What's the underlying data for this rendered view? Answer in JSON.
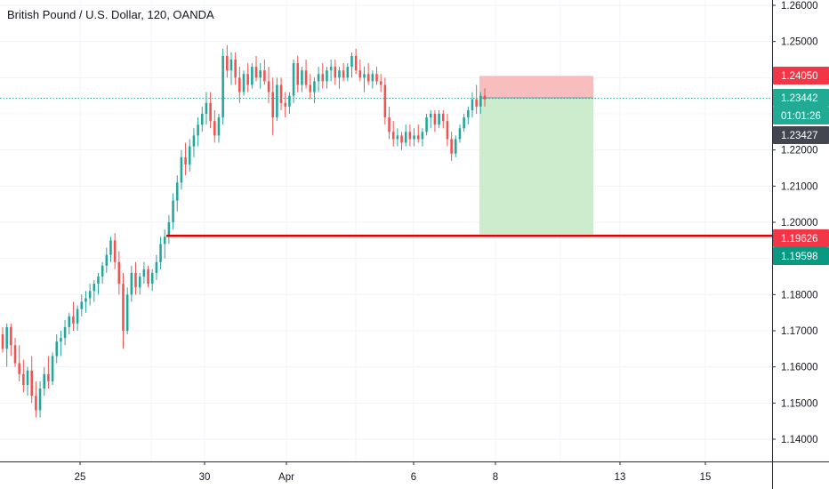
{
  "chart_data": {
    "type": "candlestick",
    "title": "British Pound / U.S. Dollar, 120, OANDA",
    "y_axis": {
      "ticks": [
        "1.26000",
        "1.25000",
        "1.24000",
        "1.23000",
        "1.22000",
        "1.21000",
        "1.20000",
        "1.19000",
        "1.18000",
        "1.17000",
        "1.16000",
        "1.15000",
        "1.14000"
      ],
      "ylim": [
        1.1325,
        1.2655
      ]
    },
    "x_axis": {
      "ticks": [
        "25",
        "30",
        "Apr",
        "6",
        "8",
        "13",
        "15"
      ]
    },
    "candles": [
      [
        1.169,
        1.171,
        1.164,
        1.165
      ],
      [
        1.165,
        1.172,
        1.16,
        1.171
      ],
      [
        1.171,
        1.172,
        1.163,
        1.166
      ],
      [
        1.166,
        1.168,
        1.16,
        1.161
      ],
      [
        1.161,
        1.166,
        1.156,
        1.158
      ],
      [
        1.158,
        1.162,
        1.153,
        1.155
      ],
      [
        1.155,
        1.16,
        1.152,
        1.159
      ],
      [
        1.159,
        1.163,
        1.15,
        1.152
      ],
      [
        1.152,
        1.156,
        1.146,
        1.148
      ],
      [
        1.148,
        1.156,
        1.146,
        1.154
      ],
      [
        1.154,
        1.16,
        1.152,
        1.158
      ],
      [
        1.158,
        1.163,
        1.154,
        1.156
      ],
      [
        1.156,
        1.164,
        1.155,
        1.163
      ],
      [
        1.163,
        1.169,
        1.161,
        1.167
      ],
      [
        1.167,
        1.17,
        1.163,
        1.168
      ],
      [
        1.168,
        1.173,
        1.166,
        1.171
      ],
      [
        1.171,
        1.175,
        1.169,
        1.174
      ],
      [
        1.174,
        1.178,
        1.17,
        1.172
      ],
      [
        1.172,
        1.177,
        1.17,
        1.176
      ],
      [
        1.176,
        1.18,
        1.174,
        1.178
      ],
      [
        1.178,
        1.181,
        1.175,
        1.179
      ],
      [
        1.179,
        1.183,
        1.177,
        1.181
      ],
      [
        1.181,
        1.184,
        1.178,
        1.183
      ],
      [
        1.183,
        1.186,
        1.18,
        1.185
      ],
      [
        1.185,
        1.189,
        1.183,
        1.188
      ],
      [
        1.188,
        1.193,
        1.186,
        1.191
      ],
      [
        1.191,
        1.196,
        1.189,
        1.195
      ],
      [
        1.195,
        1.197,
        1.187,
        1.189
      ],
      [
        1.189,
        1.192,
        1.18,
        1.183
      ],
      [
        1.183,
        1.186,
        1.165,
        1.17
      ],
      [
        1.17,
        1.182,
        1.169,
        1.18
      ],
      [
        1.18,
        1.188,
        1.178,
        1.186
      ],
      [
        1.186,
        1.189,
        1.18,
        1.182
      ],
      [
        1.182,
        1.186,
        1.18,
        1.185
      ],
      [
        1.185,
        1.189,
        1.183,
        1.187
      ],
      [
        1.187,
        1.188,
        1.182,
        1.183
      ],
      [
        1.183,
        1.187,
        1.181,
        1.186
      ],
      [
        1.186,
        1.191,
        1.184,
        1.189
      ],
      [
        1.189,
        1.196,
        1.187,
        1.194
      ],
      [
        1.194,
        1.198,
        1.19,
        1.196
      ],
      [
        1.196,
        1.202,
        1.194,
        1.2
      ],
      [
        1.2,
        1.208,
        1.198,
        1.206
      ],
      [
        1.206,
        1.213,
        1.203,
        1.211
      ],
      [
        1.211,
        1.22,
        1.209,
        1.218
      ],
      [
        1.218,
        1.222,
        1.213,
        1.216
      ],
      [
        1.216,
        1.223,
        1.214,
        1.221
      ],
      [
        1.221,
        1.226,
        1.218,
        1.224
      ],
      [
        1.224,
        1.229,
        1.221,
        1.227
      ],
      [
        1.227,
        1.232,
        1.225,
        1.23
      ],
      [
        1.23,
        1.236,
        1.227,
        1.233
      ],
      [
        1.233,
        1.236,
        1.226,
        1.228
      ],
      [
        1.228,
        1.231,
        1.222,
        1.224
      ],
      [
        1.224,
        1.23,
        1.222,
        1.229
      ],
      [
        1.229,
        1.248,
        1.227,
        1.246
      ],
      [
        1.246,
        1.249,
        1.24,
        1.242
      ],
      [
        1.242,
        1.247,
        1.238,
        1.245
      ],
      [
        1.245,
        1.247,
        1.238,
        1.24
      ],
      [
        1.24,
        1.243,
        1.233,
        1.236
      ],
      [
        1.236,
        1.242,
        1.235,
        1.241
      ],
      [
        1.241,
        1.244,
        1.236,
        1.238
      ],
      [
        1.238,
        1.244,
        1.237,
        1.243
      ],
      [
        1.243,
        1.246,
        1.239,
        1.24
      ],
      [
        1.24,
        1.244,
        1.237,
        1.242
      ],
      [
        1.242,
        1.245,
        1.238,
        1.239
      ],
      [
        1.239,
        1.243,
        1.233,
        1.236
      ],
      [
        1.236,
        1.24,
        1.224,
        1.229
      ],
      [
        1.229,
        1.24,
        1.228,
        1.238
      ],
      [
        1.238,
        1.24,
        1.231,
        1.233
      ],
      [
        1.233,
        1.236,
        1.229,
        1.232
      ],
      [
        1.232,
        1.236,
        1.23,
        1.235
      ],
      [
        1.235,
        1.245,
        1.233,
        1.244
      ],
      [
        1.244,
        1.246,
        1.236,
        1.238
      ],
      [
        1.238,
        1.243,
        1.236,
        1.242
      ],
      [
        1.242,
        1.245,
        1.237,
        1.238
      ],
      [
        1.238,
        1.241,
        1.234,
        1.236
      ],
      [
        1.236,
        1.24,
        1.233,
        1.239
      ],
      [
        1.239,
        1.243,
        1.236,
        1.241
      ],
      [
        1.241,
        1.244,
        1.237,
        1.239
      ],
      [
        1.239,
        1.243,
        1.237,
        1.242
      ],
      [
        1.242,
        1.245,
        1.239,
        1.243
      ],
      [
        1.243,
        1.245,
        1.238,
        1.24
      ],
      [
        1.24,
        1.243,
        1.237,
        1.242
      ],
      [
        1.242,
        1.244,
        1.239,
        1.24
      ],
      [
        1.24,
        1.244,
        1.239,
        1.243
      ],
      [
        1.243,
        1.247,
        1.24,
        1.246
      ],
      [
        1.246,
        1.248,
        1.241,
        1.242
      ],
      [
        1.242,
        1.245,
        1.239,
        1.24
      ],
      [
        1.24,
        1.243,
        1.236,
        1.241
      ],
      [
        1.241,
        1.244,
        1.238,
        1.239
      ],
      [
        1.239,
        1.242,
        1.237,
        1.241
      ],
      [
        1.241,
        1.243,
        1.238,
        1.239
      ],
      [
        1.239,
        1.241,
        1.236,
        1.238
      ],
      [
        1.238,
        1.24,
        1.227,
        1.229
      ],
      [
        1.229,
        1.232,
        1.223,
        1.225
      ],
      [
        1.225,
        1.228,
        1.221,
        1.223
      ],
      [
        1.223,
        1.226,
        1.221,
        1.224
      ],
      [
        1.224,
        1.225,
        1.22,
        1.222
      ],
      [
        1.222,
        1.227,
        1.221,
        1.225
      ],
      [
        1.225,
        1.227,
        1.221,
        1.223
      ],
      [
        1.223,
        1.226,
        1.221,
        1.224
      ],
      [
        1.224,
        1.227,
        1.222,
        1.223
      ],
      [
        1.223,
        1.226,
        1.221,
        1.225
      ],
      [
        1.225,
        1.23,
        1.224,
        1.229
      ],
      [
        1.229,
        1.231,
        1.226,
        1.23
      ],
      [
        1.23,
        1.231,
        1.225,
        1.227
      ],
      [
        1.227,
        1.231,
        1.226,
        1.23
      ],
      [
        1.23,
        1.231,
        1.226,
        1.228
      ],
      [
        1.228,
        1.23,
        1.221,
        1.223
      ],
      [
        1.223,
        1.225,
        1.217,
        1.219
      ],
      [
        1.219,
        1.224,
        1.218,
        1.223
      ],
      [
        1.223,
        1.227,
        1.222,
        1.226
      ],
      [
        1.226,
        1.23,
        1.225,
        1.229
      ],
      [
        1.229,
        1.232,
        1.227,
        1.231
      ],
      [
        1.231,
        1.236,
        1.229,
        1.234
      ],
      [
        1.234,
        1.238,
        1.23,
        1.232
      ],
      [
        1.232,
        1.236,
        1.23,
        1.235
      ],
      [
        1.235,
        1.237,
        1.232,
        1.234
      ]
    ],
    "colors": {
      "up": "#26a69a",
      "down": "#ef5350"
    },
    "horizontal_lines": [
      {
        "price": 1.23427,
        "color": "#26a69a",
        "style": "dotted"
      },
      {
        "price": 1.19626,
        "color": "#e00000",
        "style": "solid"
      }
    ],
    "position_tool": {
      "side": "short",
      "entry": 1.23442,
      "stop": 1.2405,
      "target": 1.19598,
      "risk_color": "#f7b3b3",
      "reward_color": "#c8eac8"
    },
    "price_labels": [
      {
        "text": "1.24050",
        "color": "#f23645"
      },
      {
        "text": "1.23442",
        "color": "#22ab94"
      },
      {
        "text": "01:01:26",
        "color": "#22ab94"
      },
      {
        "text": "1.23427",
        "color": "#434651"
      },
      {
        "text": "1.19626",
        "color": "#f23645"
      },
      {
        "text": "1.19598",
        "color": "#089981"
      }
    ]
  }
}
